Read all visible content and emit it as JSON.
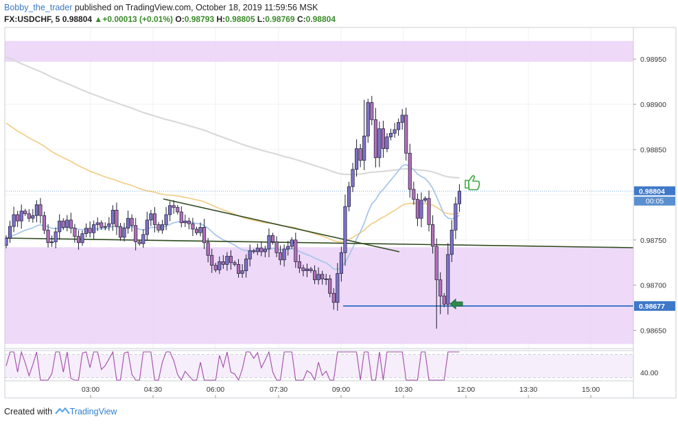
{
  "header": {
    "author": "Bobby_the_trader",
    "published_text": " published on TradingView.com, October 18, 2019 11:59:56 MSK",
    "symbol": "FX:USDCHF, 5",
    "last": "0.98804",
    "change": "+0.00013 (+0.01%)",
    "o_label": "O:",
    "o": "0.98793",
    "h_label": "H:",
    "h": "0.98805",
    "l_label": "L:",
    "l": "0.98769",
    "c_label": "C:",
    "c": "0.98804"
  },
  "footer": {
    "created": "Created with",
    "brand": "TradingView"
  },
  "colors": {
    "up": "#7d72c8",
    "down": "#b070b8",
    "zone": "#ecd5f8",
    "ema_fast": "#a9c6ea",
    "ema_mid": "#f1d08c",
    "ema_slow": "#d9d9d9",
    "trendline": "#2f4a1f",
    "support": "#3f78c8",
    "rsi": "#a04aa8"
  },
  "chart_data": {
    "type": "candlestick",
    "symbol": "USDCHF",
    "interval": "5",
    "x_ticks": [
      "03:00",
      "04:30",
      "06:00",
      "07:30",
      "09:00",
      "10:30",
      "12:00",
      "13:30",
      "15:00"
    ],
    "y_ticks": [
      "0.98950",
      "0.98900",
      "0.98850",
      "0.98750",
      "0.98700",
      "0.98650"
    ],
    "ylim": [
      0.9863,
      0.98985
    ],
    "last_price_label": "0.98804",
    "countdown_label": "00:05",
    "support_label": "0.98677",
    "support_level": 0.98677,
    "zones": [
      [
        0.98947,
        0.9897
      ],
      [
        0.98635,
        0.98742
      ]
    ],
    "rsi_label": "40.00",
    "rsi_bounds": [
      30,
      70
    ],
    "closes": [
      0.98752,
      0.98765,
      0.98778,
      0.98771,
      0.98782,
      0.98779,
      0.98774,
      0.98777,
      0.98789,
      0.98777,
      0.98761,
      0.98747,
      0.98748,
      0.98759,
      0.98771,
      0.98764,
      0.98772,
      0.98763,
      0.98754,
      0.98747,
      0.98757,
      0.98763,
      0.98758,
      0.98767,
      0.98769,
      0.98764,
      0.98765,
      0.98768,
      0.98783,
      0.98765,
      0.98753,
      0.98763,
      0.98774,
      0.98766,
      0.98748,
      0.98746,
      0.98756,
      0.98772,
      0.98779,
      0.98767,
      0.98761,
      0.98767,
      0.98778,
      0.98788,
      0.98786,
      0.98781,
      0.98769,
      0.98771,
      0.98768,
      0.98762,
      0.98758,
      0.98764,
      0.98747,
      0.98733,
      0.98722,
      0.98717,
      0.98726,
      0.98723,
      0.98732,
      0.98725,
      0.98723,
      0.98713,
      0.98716,
      0.98729,
      0.98738,
      0.98737,
      0.98741,
      0.98737,
      0.9874,
      0.98755,
      0.98748,
      0.98736,
      0.98728,
      0.9874,
      0.98743,
      0.9875,
      0.98726,
      0.98719,
      0.98716,
      0.98718,
      0.98716,
      0.98706,
      0.98712,
      0.98707,
      0.98707,
      0.98691,
      0.98681,
      0.98713,
      0.98736,
      0.98787,
      0.98809,
      0.98828,
      0.98851,
      0.98838,
      0.98865,
      0.98902,
      0.98883,
      0.98841,
      0.98873,
      0.98851,
      0.98864,
      0.98868,
      0.98872,
      0.9888,
      0.98888,
      0.98846,
      0.98806,
      0.98795,
      0.98774,
      0.98794,
      0.98796,
      0.98767,
      0.98743,
      0.98706,
      0.98688,
      0.98679,
      0.98734,
      0.98761,
      0.9879,
      0.98804
    ],
    "ema_fast": {
      "start": 0.98752,
      "end": 0.98783
    },
    "ema_mid": {
      "start": 0.98883,
      "end": 0.98798
    },
    "ema_slow": {
      "start": 0.98955,
      "end": 0.98818
    }
  }
}
